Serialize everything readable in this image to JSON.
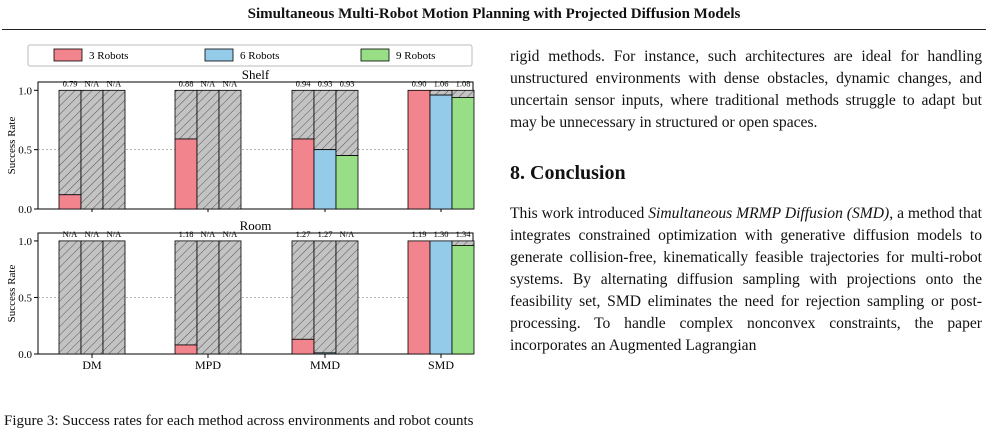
{
  "header": {
    "running_title": "Simultaneous Multi-Robot Motion Planning with Projected Diffusion Models"
  },
  "colors": {
    "series_3": "#f2848e",
    "series_6": "#93cbe8",
    "series_9": "#98de86",
    "hatch_fill": "#c3c3c3"
  },
  "chart_data": {
    "type": "bar",
    "categories": [
      "DM",
      "MPD",
      "MMD",
      "SMD"
    ],
    "legend": [
      "3 Robots",
      "6 Robots",
      "9 Robots"
    ],
    "legend_placement": "top",
    "ylabel": "Success Rate",
    "ylim": [
      0,
      1.07
    ],
    "yticks": [
      "0.0",
      "0.5",
      "1.0"
    ],
    "hatched_remainder_to": 1.0,
    "panels": [
      {
        "title": "Shelf",
        "series": [
          {
            "name": "3 Robots",
            "values": [
              0.12,
              0.59,
              0.59,
              1.0
            ]
          },
          {
            "name": "6 Robots",
            "values": [
              0.0,
              0.0,
              0.5,
              0.96
            ]
          },
          {
            "name": "9 Robots",
            "values": [
              0.0,
              0.0,
              0.45,
              0.94
            ]
          }
        ],
        "annotations": [
          [
            "0.79",
            "N/A",
            "N/A"
          ],
          [
            "0.88",
            "N/A",
            "N/A"
          ],
          [
            "0.94",
            "0.93",
            "0.93"
          ],
          [
            "0.90",
            "1.06",
            "1.08"
          ]
        ]
      },
      {
        "title": "Room",
        "series": [
          {
            "name": "3 Robots",
            "values": [
              0.0,
              0.08,
              0.13,
              1.0
            ]
          },
          {
            "name": "6 Robots",
            "values": [
              0.0,
              0.0,
              0.01,
              1.0
            ]
          },
          {
            "name": "9 Robots",
            "values": [
              0.0,
              0.0,
              0.0,
              0.96
            ]
          }
        ],
        "annotations": [
          [
            "N/A",
            "N/A",
            "N/A"
          ],
          [
            "1.18",
            "N/A",
            "N/A"
          ],
          [
            "1.27",
            "1.27",
            "N/A"
          ],
          [
            "1.19",
            "1.30",
            "1.34"
          ]
        ]
      }
    ]
  },
  "body": {
    "para1": "rigid methods. For instance, such architectures are ideal for handling unstructured environments with dense obstacles, dynamic changes, and uncertain sensor inputs, where traditional methods struggle to adapt but may be unnecessary in structured or open spaces.",
    "section_heading": "8. Conclusion",
    "para2_lead": "This work introduced ",
    "para2_em": "Simultaneous MRMP Diffusion (SMD)",
    "para2_rest": ", a method that integrates constrained optimization with generative diffusion models to generate collision-free, kinematically feasible trajectories for multi-robot systems. By alternating diffusion sampling with projections onto the feasibility set, SMD eliminates the need for rejection sampling or post-processing. To handle complex nonconvex constraints, the paper incorporates an Augmented Lagrangian"
  },
  "caption_fragment": "Figure 3: Success rates for each method across environments and robot counts."
}
